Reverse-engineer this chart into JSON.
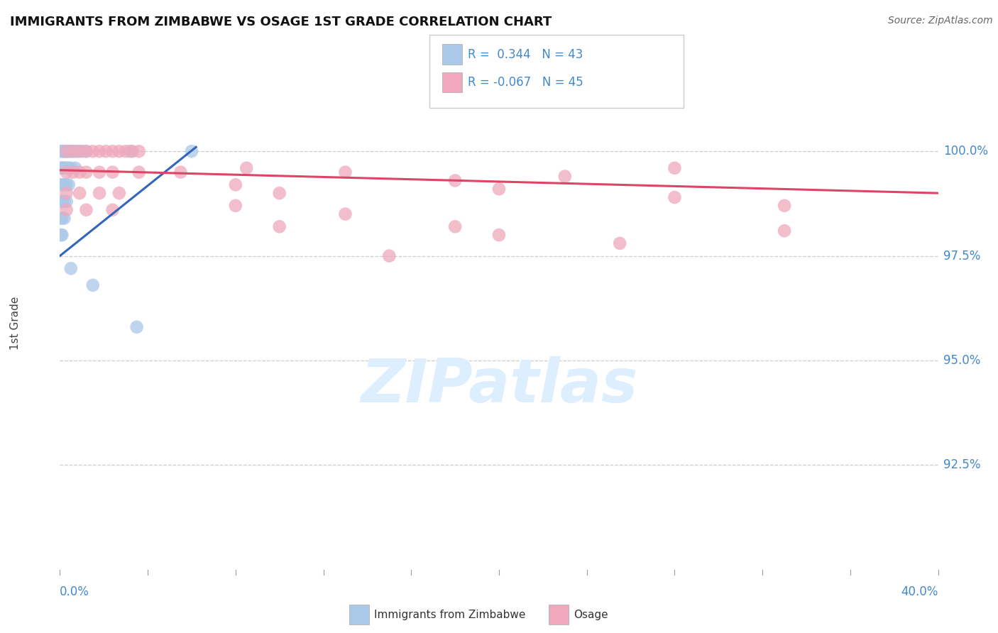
{
  "title": "IMMIGRANTS FROM ZIMBABWE VS OSAGE 1ST GRADE CORRELATION CHART",
  "source": "Source: ZipAtlas.com",
  "ylabel": "1st Grade",
  "xlim": [
    0.0,
    40.0
  ],
  "ylim": [
    90.0,
    101.8
  ],
  "yticks": [
    100.0,
    97.5,
    95.0,
    92.5
  ],
  "blue_color": "#aac8e8",
  "pink_color": "#f0a8bc",
  "blue_line_color": "#3366bb",
  "pink_line_color": "#dd4466",
  "tick_color": "#4488cc",
  "grid_color": "#cccccc",
  "background_color": "#ffffff",
  "title_color": "#111111",
  "source_color": "#666666",
  "watermark_color": "#ddeeff",
  "blue_points": [
    [
      0.05,
      100.0
    ],
    [
      0.1,
      100.0
    ],
    [
      0.15,
      100.0
    ],
    [
      0.2,
      100.0
    ],
    [
      0.25,
      100.0
    ],
    [
      0.3,
      100.0
    ],
    [
      0.35,
      100.0
    ],
    [
      0.4,
      100.0
    ],
    [
      0.5,
      100.0
    ],
    [
      0.6,
      100.0
    ],
    [
      0.7,
      100.0
    ],
    [
      0.8,
      100.0
    ],
    [
      1.0,
      100.0
    ],
    [
      1.2,
      100.0
    ],
    [
      0.05,
      99.6
    ],
    [
      0.1,
      99.6
    ],
    [
      0.15,
      99.6
    ],
    [
      0.2,
      99.6
    ],
    [
      0.3,
      99.6
    ],
    [
      0.4,
      99.6
    ],
    [
      0.5,
      99.6
    ],
    [
      0.7,
      99.6
    ],
    [
      0.05,
      99.2
    ],
    [
      0.1,
      99.2
    ],
    [
      0.2,
      99.2
    ],
    [
      0.3,
      99.2
    ],
    [
      0.4,
      99.2
    ],
    [
      0.05,
      98.8
    ],
    [
      0.1,
      98.8
    ],
    [
      0.2,
      98.8
    ],
    [
      0.3,
      98.8
    ],
    [
      0.05,
      98.4
    ],
    [
      0.1,
      98.4
    ],
    [
      0.2,
      98.4
    ],
    [
      0.05,
      98.0
    ],
    [
      0.1,
      98.0
    ],
    [
      3.2,
      100.0
    ],
    [
      6.0,
      100.0
    ],
    [
      0.5,
      97.2
    ],
    [
      1.5,
      96.8
    ],
    [
      3.5,
      95.8
    ]
  ],
  "pink_points": [
    [
      0.3,
      100.0
    ],
    [
      0.6,
      100.0
    ],
    [
      0.9,
      100.0
    ],
    [
      1.2,
      100.0
    ],
    [
      1.5,
      100.0
    ],
    [
      1.8,
      100.0
    ],
    [
      2.1,
      100.0
    ],
    [
      2.4,
      100.0
    ],
    [
      2.7,
      100.0
    ],
    [
      3.0,
      100.0
    ],
    [
      3.3,
      100.0
    ],
    [
      3.6,
      100.0
    ],
    [
      0.3,
      99.5
    ],
    [
      0.6,
      99.5
    ],
    [
      0.9,
      99.5
    ],
    [
      1.2,
      99.5
    ],
    [
      1.8,
      99.5
    ],
    [
      2.4,
      99.5
    ],
    [
      3.6,
      99.5
    ],
    [
      0.3,
      99.0
    ],
    [
      0.9,
      99.0
    ],
    [
      1.8,
      99.0
    ],
    [
      2.7,
      99.0
    ],
    [
      0.3,
      98.6
    ],
    [
      1.2,
      98.6
    ],
    [
      2.4,
      98.6
    ],
    [
      5.5,
      99.5
    ],
    [
      8.0,
      99.2
    ],
    [
      10.0,
      99.0
    ],
    [
      13.0,
      99.5
    ],
    [
      18.0,
      99.3
    ],
    [
      8.0,
      98.7
    ],
    [
      13.0,
      98.5
    ],
    [
      18.0,
      98.2
    ],
    [
      23.0,
      99.4
    ],
    [
      28.0,
      99.6
    ],
    [
      33.0,
      98.7
    ],
    [
      20.0,
      98.0
    ],
    [
      25.5,
      97.8
    ],
    [
      10.0,
      98.2
    ],
    [
      15.0,
      97.5
    ],
    [
      33.0,
      98.1
    ],
    [
      8.5,
      99.6
    ],
    [
      20.0,
      99.1
    ],
    [
      28.0,
      98.9
    ]
  ],
  "blue_trendline_x": [
    0.0,
    6.2
  ],
  "blue_trendline_y": [
    97.5,
    100.1
  ],
  "pink_trendline_x": [
    0.0,
    40.0
  ],
  "pink_trendline_y": [
    99.55,
    99.0
  ]
}
